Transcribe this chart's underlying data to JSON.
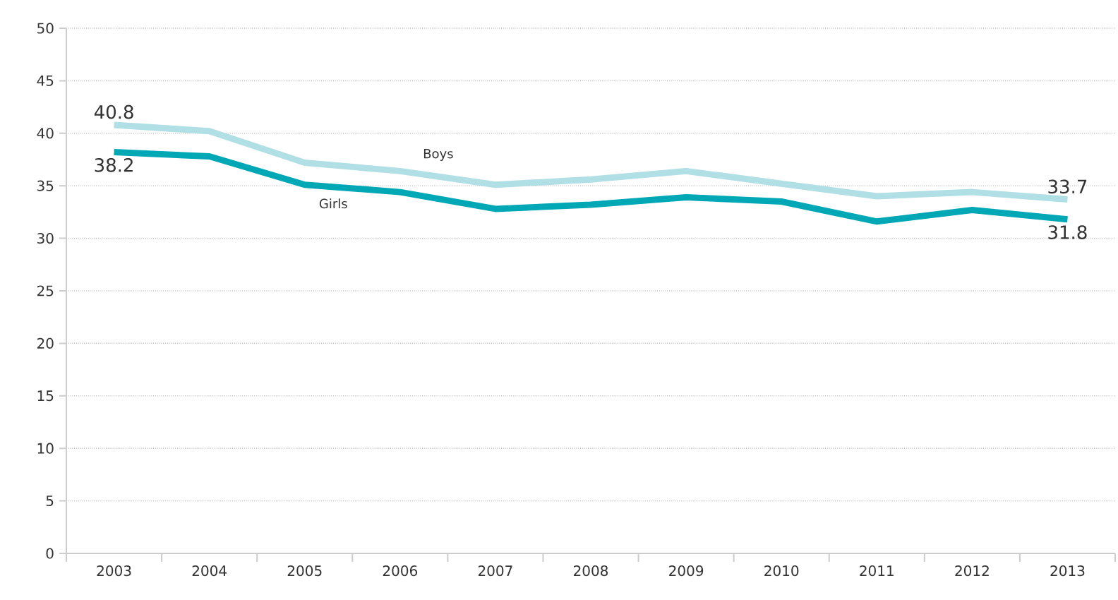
{
  "chart_data": {
    "type": "line",
    "categories": [
      "2003",
      "2004",
      "2005",
      "2006",
      "2007",
      "2008",
      "2009",
      "2010",
      "2011",
      "2012",
      "2013"
    ],
    "series": [
      {
        "name": "Boys",
        "color": "#b0dfe5",
        "values": [
          40.8,
          40.2,
          37.2,
          36.4,
          35.1,
          35.6,
          36.4,
          35.2,
          34.0,
          34.4,
          33.7
        ],
        "value_labels": [
          "40.8",
          null,
          null,
          null,
          null,
          null,
          null,
          null,
          null,
          null,
          "33.7"
        ]
      },
      {
        "name": "Girls",
        "color": "#00a8b5",
        "values": [
          38.2,
          37.8,
          35.1,
          34.4,
          32.8,
          33.2,
          33.9,
          33.5,
          31.6,
          32.7,
          31.8
        ],
        "value_labels": [
          "38.2",
          null,
          null,
          null,
          null,
          null,
          null,
          null,
          null,
          null,
          "31.8"
        ]
      }
    ],
    "ylim": [
      0,
      50
    ],
    "yticks": [
      0,
      5,
      10,
      15,
      20,
      25,
      30,
      35,
      40,
      45,
      50
    ],
    "grid": "y",
    "legend": false,
    "marker": "none",
    "line_style": "solid"
  }
}
